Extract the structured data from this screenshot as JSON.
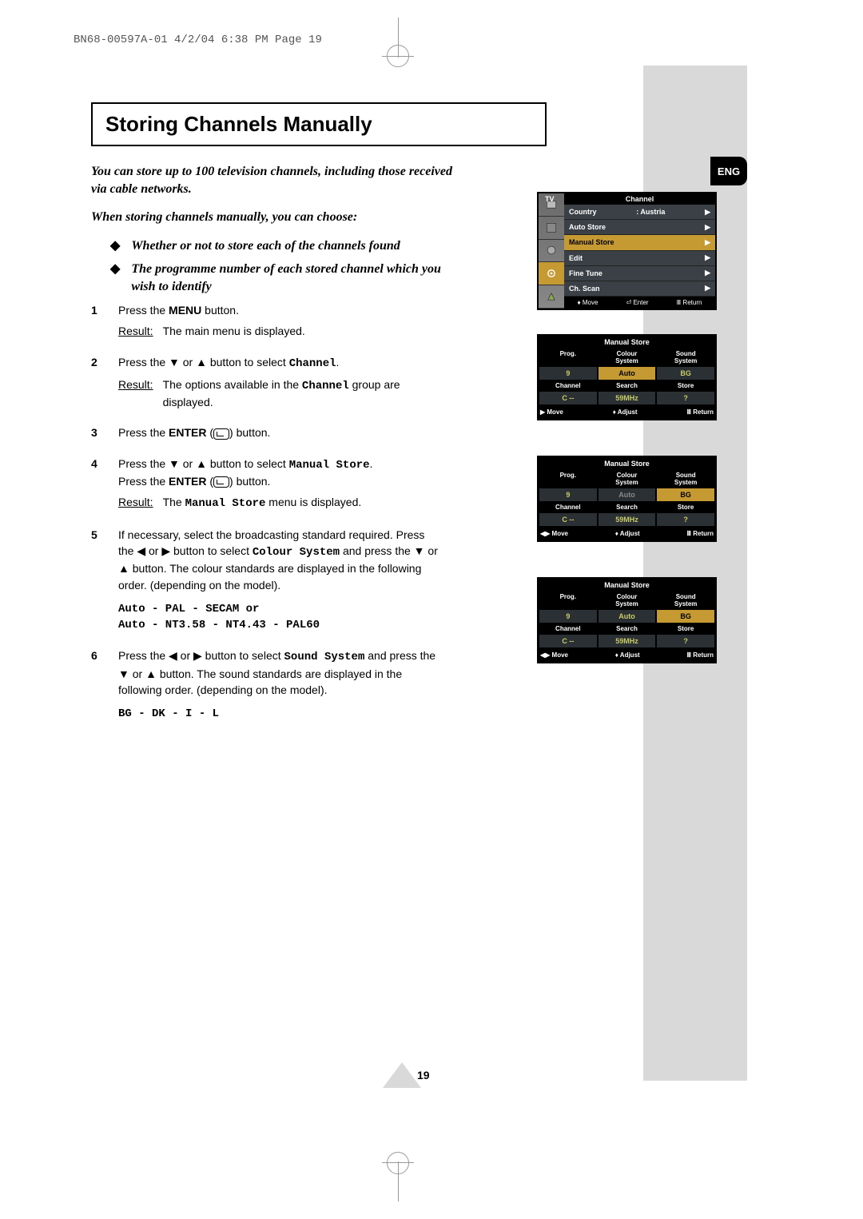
{
  "header": "BN68-00597A-01  4/2/04  6:38 PM  Page 19",
  "lang_tab": "ENG",
  "title": "Storing Channels Manually",
  "page_number": "19",
  "intro": {
    "p1": "You can store up to 100 television channels, including those received via cable networks.",
    "p2": "When storing channels manually, you can choose:",
    "b1": "Whether or not to store each of the channels found",
    "b2": "The programme number of each stored channel which you wish to identify"
  },
  "steps": {
    "s1a": "Press the ",
    "s1b": " button.",
    "menu": "MENU",
    "s1r": "The main menu is displayed.",
    "s2a": "Press the ▼ or ▲ button to select ",
    "channel": "Channel",
    "s2r": "The options available in the ",
    "s2r2": " group are displayed.",
    "s3a": "Press the ",
    "enter": "ENTER",
    "s3b": " button.",
    "s4a": "Press the ▼ or ▲ button to select ",
    "manual_store": "Manual Store",
    "s4b": "Press the ",
    "s4r": "The ",
    "s4r2": " menu is displayed.",
    "s5": "If necessary, select the broadcasting standard required. Press the ◀ or ▶ button to select ",
    "colour_system": "Colour System",
    "s5b": " and press the ▼ or ▲ button. The colour standards are displayed in the following order. (depending on the model).",
    "s5list": "Auto - PAL - SECAM or\nAuto - NT3.58 - NT4.43 - PAL60",
    "s6a": "Press the ◀ or ▶ button to select ",
    "sound_system": "Sound System",
    "s6b": " and press the ▼ or ▲ button. The sound standards are displayed in the following order. (depending on the model).",
    "s6list": "BG - DK - I - L",
    "result": "Result:"
  },
  "osd_channel": {
    "tv": "TV",
    "title": "Channel",
    "rows": [
      {
        "l": "Country",
        "v": ": Austria",
        "arr": "▶"
      },
      {
        "l": "Auto Store",
        "v": "",
        "arr": "▶"
      },
      {
        "l": "Manual Store",
        "v": "",
        "arr": "▶",
        "sel": true
      },
      {
        "l": "Edit",
        "v": "",
        "arr": "▶"
      },
      {
        "l": "Fine Tune",
        "v": "",
        "arr": "▶"
      },
      {
        "l": "Ch. Scan",
        "v": "",
        "arr": "▶"
      }
    ],
    "foot": {
      "move": "Move",
      "enter": "Enter",
      "return": "Return"
    }
  },
  "osd_ms": {
    "title": "Manual Store",
    "labels1": [
      "Prog.",
      "Colour\nSystem",
      "Sound\nSystem"
    ],
    "labels2": [
      "Channel",
      "Search",
      "Store"
    ],
    "foot_move": "Move",
    "foot_adjust": "Adjust",
    "foot_return": "Return"
  },
  "ms1": {
    "v": [
      "9",
      "Auto",
      "BG",
      "C  --",
      "59MHz",
      "?"
    ],
    "sel": 1,
    "move": "▶ Move"
  },
  "ms2": {
    "v": [
      "9",
      "Auto",
      "BG",
      "C  --",
      "59MHz",
      "?"
    ],
    "sel": 2,
    "move": "◀▶ Move",
    "dim": 1
  },
  "ms3": {
    "v": [
      "9",
      "Auto",
      "BG",
      "C  --",
      "59MHz",
      "?"
    ],
    "sel": 2,
    "move": "◀▶ Move"
  }
}
